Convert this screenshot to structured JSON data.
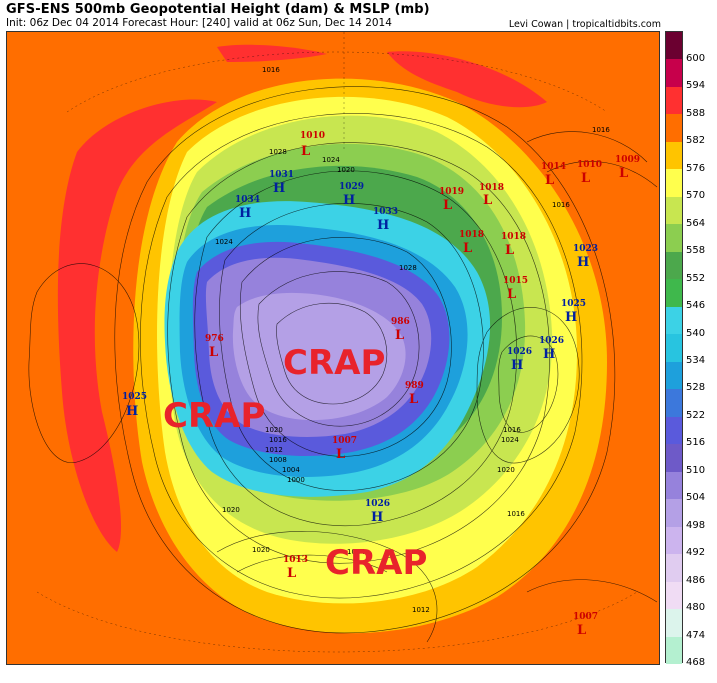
{
  "header": {
    "title": "GFS-ENS 500mb Geopotential Height (dam) & MSLP (mb)",
    "subtitle": "Init: 06z Dec 04 2014     Forecast Hour: [240]     valid at 06z Sun, Dec 14 2014",
    "credit": "Levi Cowan | tropicaltidbits.com"
  },
  "overlay_text": [
    "CRAP",
    "CRAP",
    "CRAP"
  ],
  "colorbar": {
    "labels": [
      "600",
      "594",
      "588",
      "582",
      "576",
      "570",
      "564",
      "558",
      "552",
      "546",
      "540",
      "534",
      "528",
      "522",
      "516",
      "510",
      "504",
      "498",
      "492",
      "486",
      "480",
      "474",
      "468"
    ],
    "colors": [
      "#6b0030",
      "#c7004b",
      "#ff3030",
      "#ff6e00",
      "#ffc400",
      "#ffff4d",
      "#c8e650",
      "#8cce50",
      "#4ca84c",
      "#3fb84c",
      "#3cd2e6",
      "#28c4e0",
      "#1ea0dc",
      "#3c78dc",
      "#5a5adc",
      "#6e5ac8",
      "#9682dc",
      "#b4a0e6",
      "#ccb4ee",
      "#e0ccf0",
      "#f0dcf4",
      "#dcf4ec",
      "#b4f0d0"
    ]
  },
  "pressure_centers": [
    {
      "type": "L",
      "value": "1010",
      "color": "#cc0000"
    },
    {
      "type": "H",
      "value": "1031",
      "color": "#0020a0"
    },
    {
      "type": "H",
      "value": "1029",
      "color": "#0020a0"
    },
    {
      "type": "H",
      "value": "1034",
      "color": "#0020a0"
    },
    {
      "type": "H",
      "value": "1033",
      "color": "#0020a0"
    },
    {
      "type": "L",
      "value": "1019",
      "color": "#cc0000"
    },
    {
      "type": "L",
      "value": "1018",
      "color": "#cc0000"
    },
    {
      "type": "L",
      "value": "1018",
      "color": "#cc0000"
    },
    {
      "type": "L",
      "value": "1018",
      "color": "#cc0000"
    },
    {
      "type": "L",
      "value": "1015",
      "color": "#cc0000"
    },
    {
      "type": "L",
      "value": "1014",
      "color": "#cc0000"
    },
    {
      "type": "L",
      "value": "1010",
      "color": "#cc0000"
    },
    {
      "type": "L",
      "value": "1009",
      "color": "#cc0000"
    },
    {
      "type": "H",
      "value": "1023",
      "color": "#0020a0"
    },
    {
      "type": "H",
      "value": "1025",
      "color": "#0020a0"
    },
    {
      "type": "H",
      "value": "1026",
      "color": "#0020a0"
    },
    {
      "type": "H",
      "value": "1026",
      "color": "#0020a0"
    },
    {
      "type": "L",
      "value": "976",
      "color": "#cc0000"
    },
    {
      "type": "L",
      "value": "986",
      "color": "#cc0000"
    },
    {
      "type": "L",
      "value": "989",
      "color": "#cc0000"
    },
    {
      "type": "L",
      "value": "1007",
      "color": "#cc0000"
    },
    {
      "type": "H",
      "value": "1025",
      "color": "#0020a0"
    },
    {
      "type": "H",
      "value": "1026",
      "color": "#0020a0"
    },
    {
      "type": "L",
      "value": "1013",
      "color": "#cc0000"
    },
    {
      "type": "L",
      "value": "1007",
      "color": "#cc0000"
    }
  ],
  "isobar_labels": [
    "1016",
    "1028",
    "1024",
    "1020",
    "1024",
    "1028",
    "1020",
    "1016",
    "1012",
    "1008",
    "1004",
    "1000",
    "1016",
    "1020",
    "1024",
    "1016",
    "1020",
    "1024",
    "1012",
    "1016",
    "1020",
    "1016"
  ]
}
